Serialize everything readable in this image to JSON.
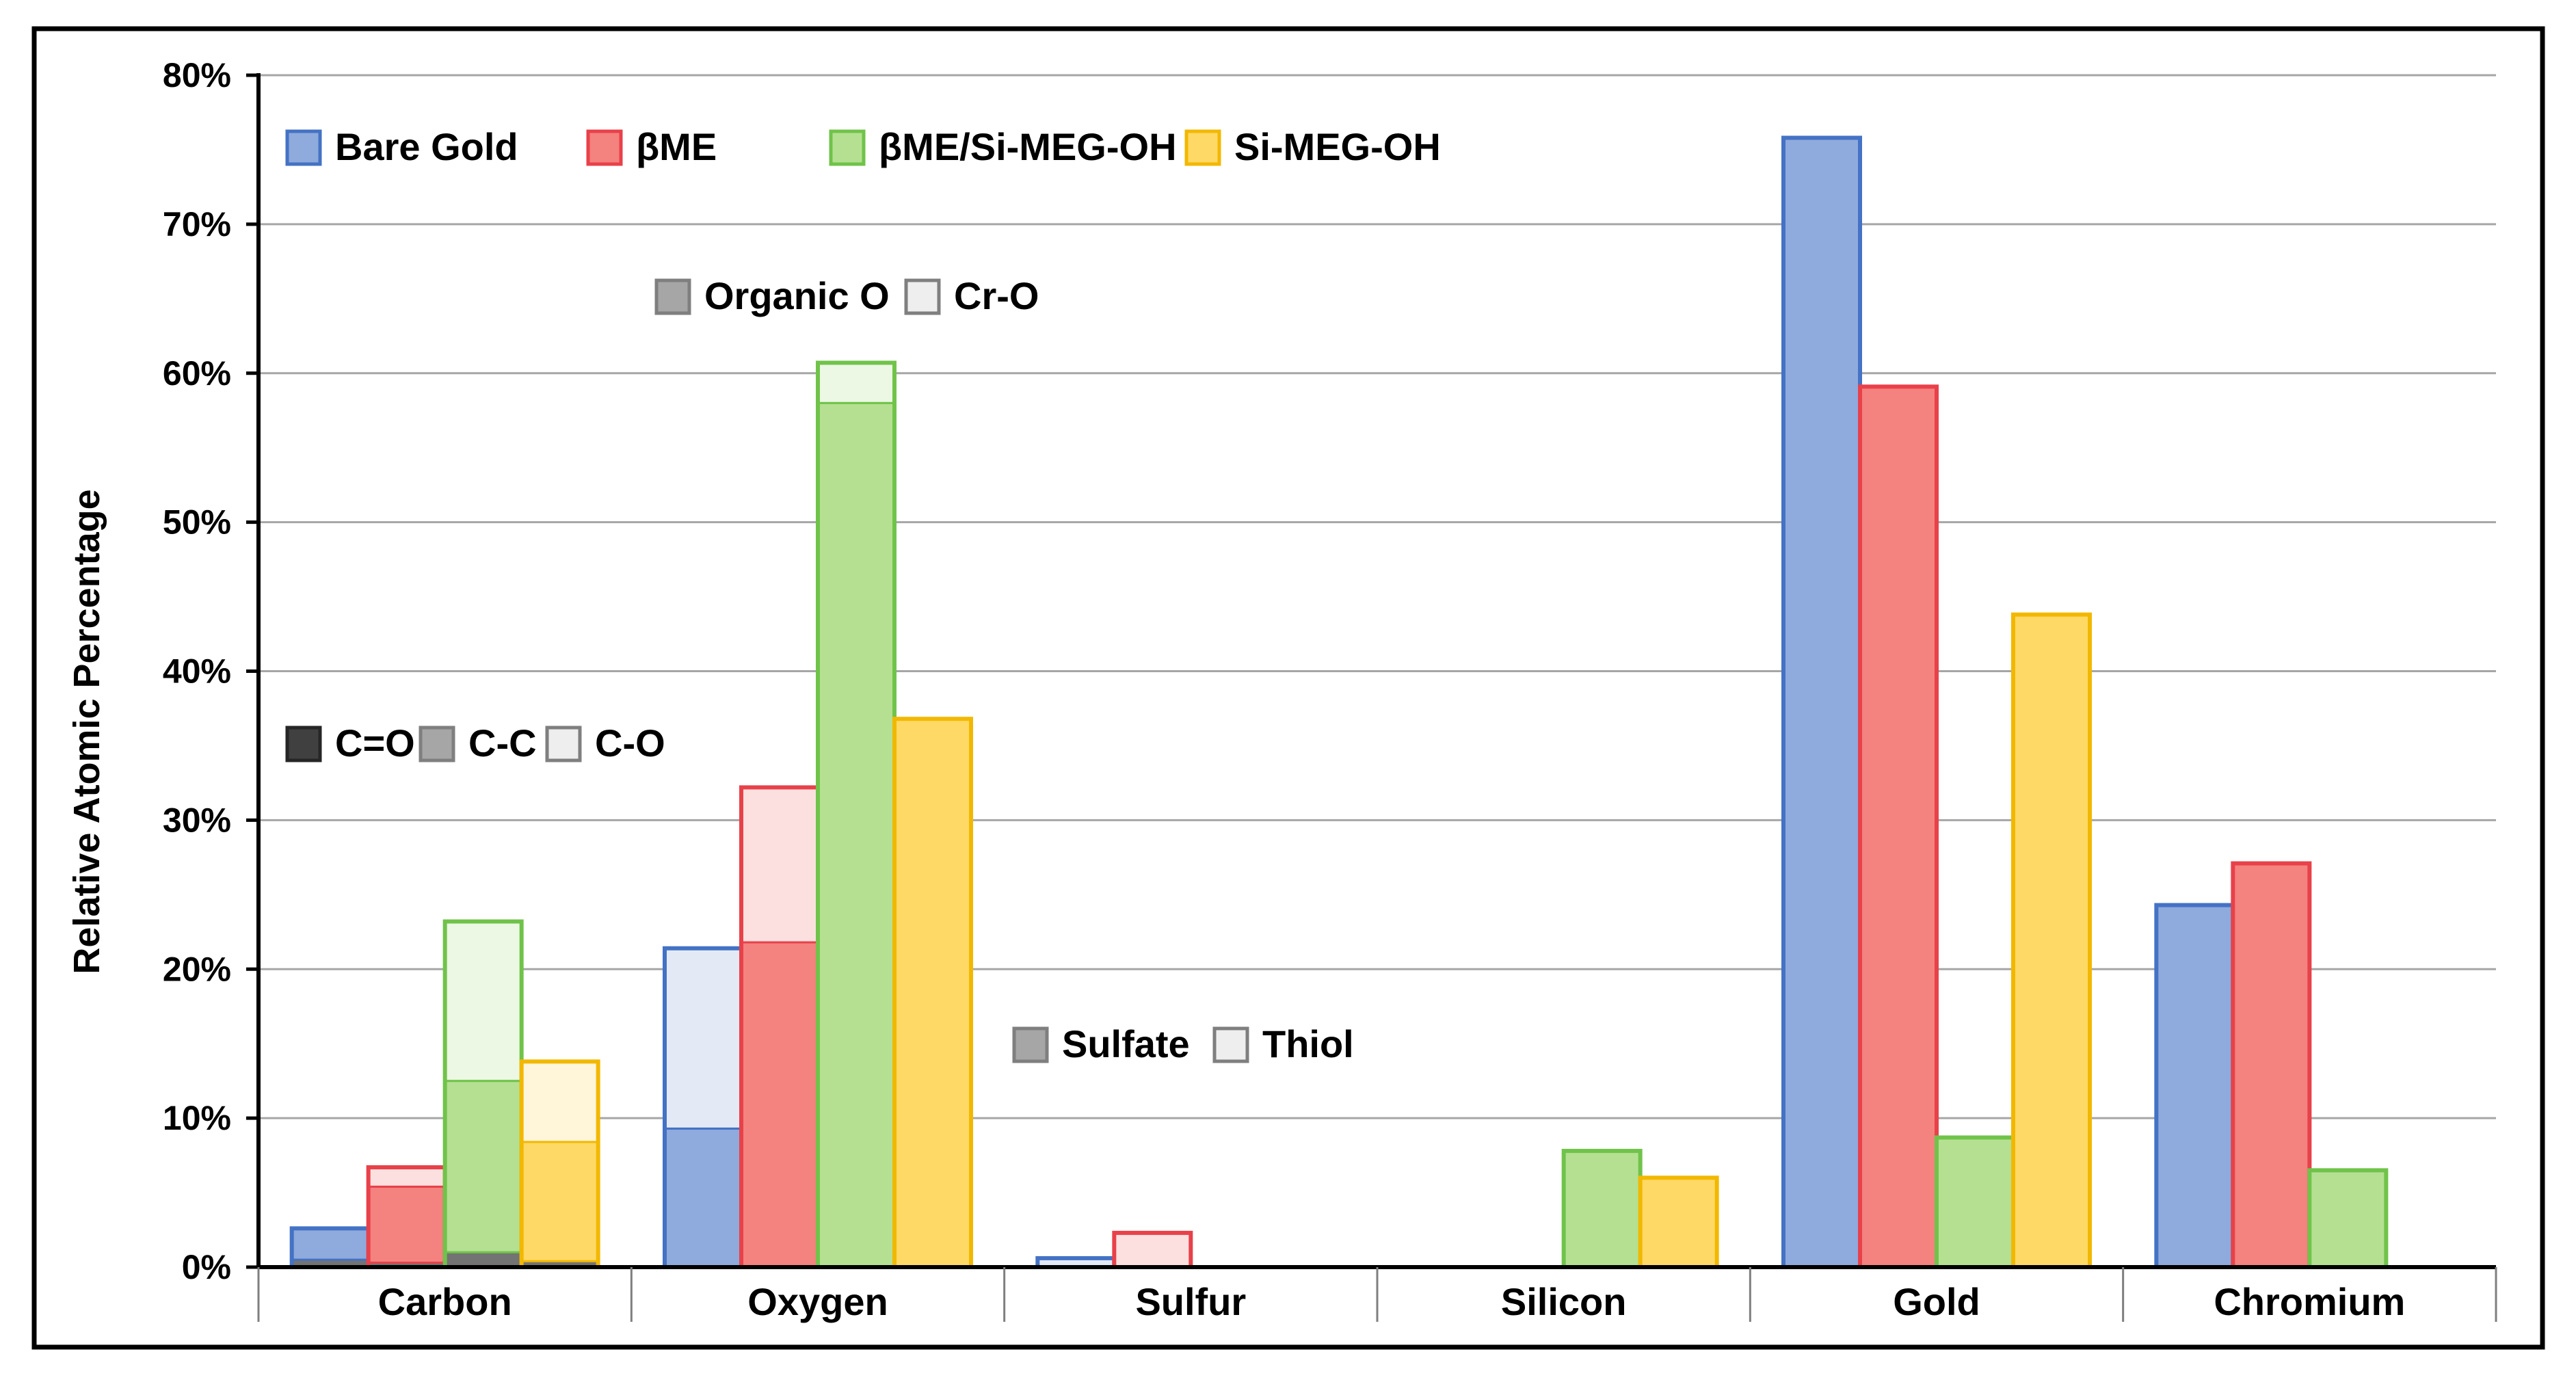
{
  "chart_data": {
    "type": "bar",
    "title": "",
    "xlabel": "",
    "ylabel": "Relative Atomic Percentage",
    "ylim": [
      0,
      80
    ],
    "yticks": [
      "0%",
      "10%",
      "20%",
      "30%",
      "40%",
      "50%",
      "60%",
      "70%",
      "80%"
    ],
    "grid": true,
    "legend_position": "top-left",
    "categories": [
      "Carbon",
      "Oxygen",
      "Sulfur",
      "Silicon",
      "Gold",
      "Chromium"
    ],
    "series": [
      {
        "name": "Bare Gold",
        "color": "#8faadc",
        "stroke": "#4472c4",
        "values": [
          2.6,
          21.4,
          0.6,
          0,
          75.8,
          24.3
        ]
      },
      {
        "name": "βME",
        "color": "#f4827f",
        "stroke": "#e8414a",
        "values": [
          6.7,
          32.2,
          2.3,
          0,
          59.1,
          27.1
        ]
      },
      {
        "name": "βME/Si-MEG-OH",
        "color": "#b5e092",
        "stroke": "#70c34a",
        "values": [
          23.2,
          60.7,
          0,
          7.8,
          8.7,
          6.5
        ]
      },
      {
        "name": "Si-MEG-OH",
        "color": "#ffd966",
        "stroke": "#f2b800",
        "values": [
          13.8,
          36.8,
          0,
          6.0,
          43.8,
          0
        ]
      }
    ],
    "components": {
      "Carbon": [
        {
          "C=O": 0.5,
          "C-C": 2.1,
          "C-O": 0
        },
        {
          "C=O": 0.3,
          "C-C": 5.1,
          "C-O": 1.3
        },
        {
          "C=O": 1.0,
          "C-C": 11.5,
          "C-O": 10.7
        },
        {
          "C=O": 0.4,
          "C-C": 8.0,
          "C-O": 5.4
        }
      ],
      "Oxygen": [
        {
          "Organic O": 9.3,
          "Cr-O": 12.1
        },
        {
          "Organic O": 21.8,
          "Cr-O": 10.4
        },
        {
          "Organic O": 58.0,
          "Cr-O": 2.7
        },
        {
          "Organic O": 36.8,
          "Cr-O": 0
        }
      ],
      "Sulfur": [
        {
          "Sulfate": 0,
          "Thiol": 0.6
        },
        {
          "Sulfate": 0,
          "Thiol": 2.3
        },
        {
          "Sulfate": 0,
          "Thiol": 0
        },
        {
          "Sulfate": 0,
          "Thiol": 0
        }
      ]
    },
    "legends": {
      "main": [
        "Bare Gold",
        "βME",
        "βME/Si-MEG-OH",
        "Si-MEG-OH"
      ],
      "oxygen": [
        "Organic O",
        "Cr-O"
      ],
      "carbon": [
        "C=O",
        "C-C",
        "C-O"
      ],
      "sulfur": [
        "Sulfate",
        "Thiol"
      ]
    }
  }
}
